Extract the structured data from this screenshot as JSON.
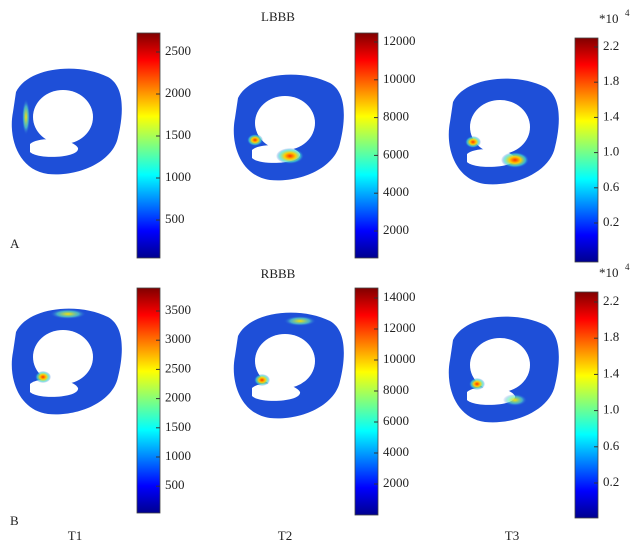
{
  "panels": [
    {
      "label": "A",
      "title": "LBBB",
      "colorbars": [
        {
          "ticks": [
            "2500",
            "2000",
            "1500",
            "1000",
            "500"
          ]
        },
        {
          "ticks": [
            "12000",
            "10000",
            "8000",
            "6000",
            "4000",
            "2000"
          ]
        },
        {
          "ticks": [
            "2.2",
            "1.8",
            "1.4",
            "1.0",
            "0.6",
            "0.2"
          ],
          "multiplier": "*10",
          "exponent": "4"
        }
      ]
    },
    {
      "label": "B",
      "title": "RBBB",
      "colorbars": [
        {
          "ticks": [
            "3500",
            "3000",
            "2500",
            "2000",
            "1500",
            "1000",
            "500"
          ]
        },
        {
          "ticks": [
            "14000",
            "12000",
            "10000",
            "8000",
            "6000",
            "4000",
            "2000"
          ]
        },
        {
          "ticks": [
            "2.2",
            "1.8",
            "1.4",
            "1.0",
            "0.6",
            "0.2"
          ],
          "multiplier": "*10",
          "exponent": "4"
        }
      ]
    }
  ],
  "columns": [
    "T1",
    "T2",
    "T3"
  ]
}
